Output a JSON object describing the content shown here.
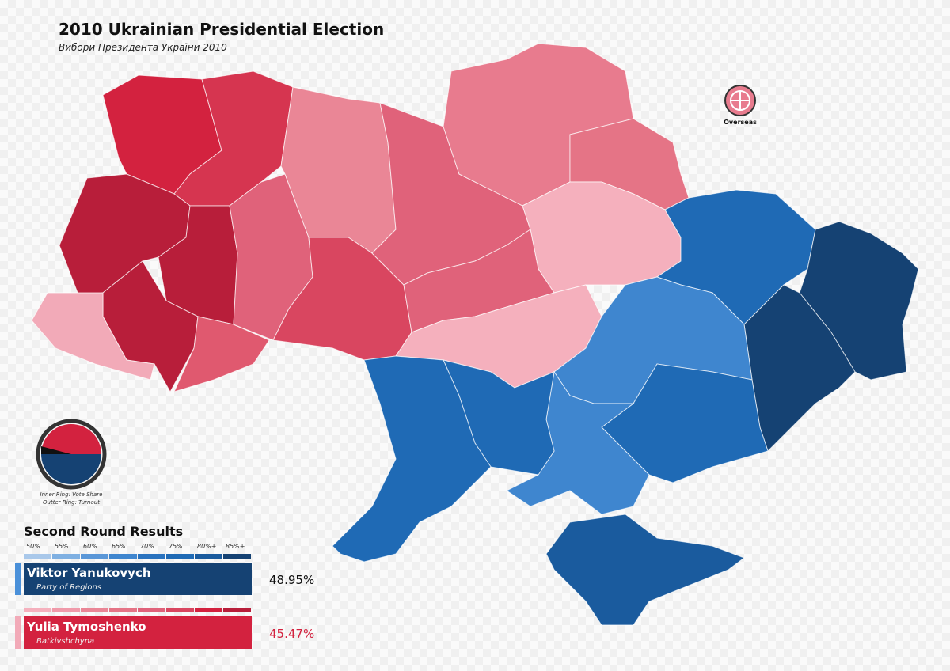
{
  "header": {
    "title": "2010 Ukrainian Presidential Election",
    "subtitle": "Вибори Президента України 2010"
  },
  "overseas": {
    "label": "Overseas"
  },
  "ring_note": {
    "inner": "Inner Ring: Vote Share",
    "outer": "Outter Ring: Turnout"
  },
  "results": {
    "title": "Second Round Results",
    "scale": [
      "50%",
      "55%",
      "60%",
      "65%",
      "70%",
      "75%",
      "80%+",
      "85%+"
    ],
    "candidates": [
      {
        "name": "Viktor Yanukovych",
        "party": "Party of Regions",
        "share": "48.95%"
      },
      {
        "name": "Yulia Tymoshenko",
        "party": "Batkivshchyna",
        "share": "45.47%"
      }
    ]
  }
}
